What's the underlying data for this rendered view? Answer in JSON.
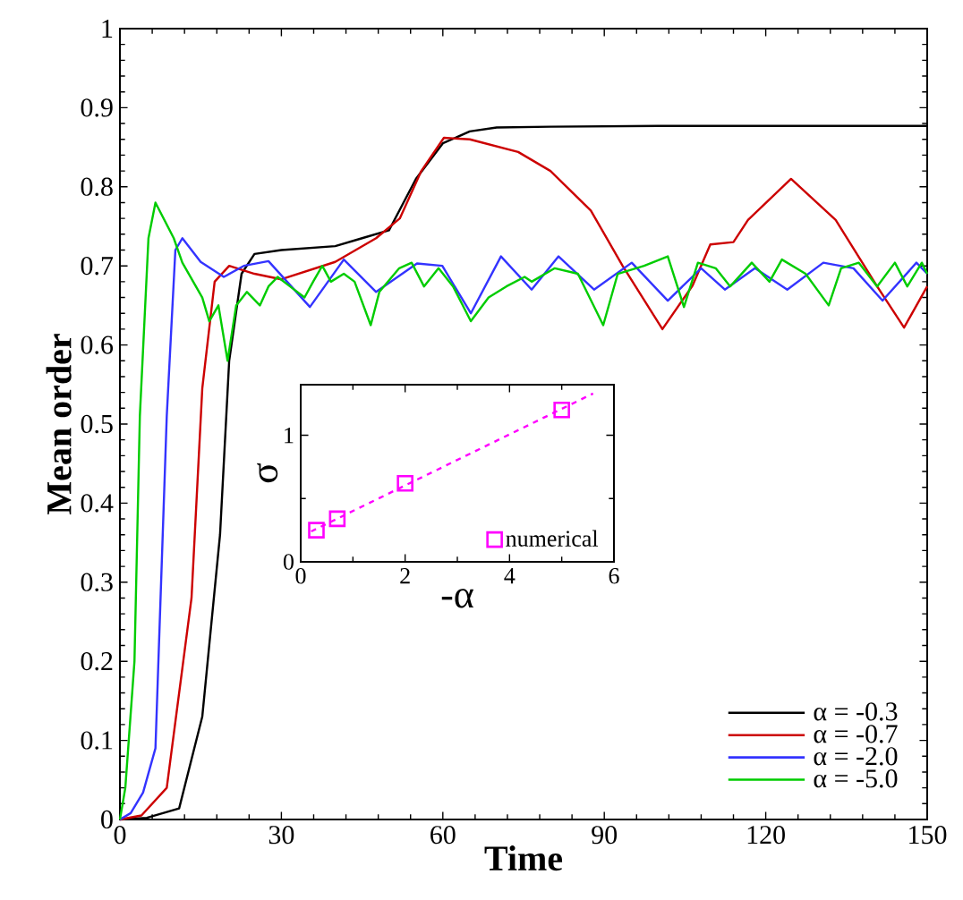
{
  "chart_data": [
    {
      "type": "line",
      "xlabel": "Time",
      "ylabel": "Mean order",
      "xlim": [
        0,
        150
      ],
      "ylim": [
        0,
        1
      ],
      "xticks": [
        0,
        30,
        60,
        90,
        120,
        150
      ],
      "yticks": [
        0,
        0.1,
        0.2,
        0.3,
        0.4,
        0.5,
        0.6,
        0.7,
        0.8,
        0.9,
        1
      ],
      "legend": "bottom right",
      "grid": false,
      "series": [
        {
          "name": "α = -0.3",
          "color": "#000000",
          "x": [
            0,
            5,
            11,
            15.3,
            18.6,
            20.3,
            22.6,
            25,
            30,
            40,
            45,
            50,
            55,
            60,
            65,
            70,
            80,
            100,
            150
          ],
          "values": [
            0,
            0.002,
            0.014,
            0.13,
            0.36,
            0.58,
            0.69,
            0.715,
            0.72,
            0.725,
            0.735,
            0.745,
            0.81,
            0.855,
            0.87,
            0.875,
            0.876,
            0.877,
            0.877
          ]
        },
        {
          "name": "α = -0.7",
          "color": "#cc0000",
          "x": [
            0,
            4,
            8.7,
            13.3,
            15.3,
            17.6,
            20.3,
            25,
            30,
            40,
            47.6,
            52,
            56,
            60.2,
            65,
            74,
            80,
            87.5,
            93.4,
            100.8,
            106.4,
            109.7,
            114,
            116.7,
            124.7,
            133,
            140.7,
            145.7,
            150
          ],
          "values": [
            0,
            0.005,
            0.04,
            0.28,
            0.545,
            0.68,
            0.7,
            0.69,
            0.683,
            0.705,
            0.735,
            0.76,
            0.82,
            0.862,
            0.86,
            0.844,
            0.82,
            0.77,
            0.7,
            0.62,
            0.675,
            0.727,
            0.73,
            0.758,
            0.81,
            0.758,
            0.674,
            0.622,
            0.674
          ]
        },
        {
          "name": "α = -2.0",
          "color": "#3333ff",
          "x": [
            0,
            2,
            4.3,
            6.6,
            8.7,
            10.3,
            11.6,
            15,
            19.3,
            23,
            27.6,
            35.3,
            41.6,
            47.6,
            55.2,
            59.9,
            65.2,
            70.8,
            76.5,
            81.5,
            88.1,
            95.1,
            101.8,
            108,
            112.4,
            118,
            124,
            130.7,
            136.3,
            141.7,
            148,
            150
          ],
          "values": [
            0,
            0.008,
            0.034,
            0.09,
            0.51,
            0.72,
            0.735,
            0.705,
            0.686,
            0.7,
            0.706,
            0.648,
            0.708,
            0.667,
            0.703,
            0.7,
            0.64,
            0.712,
            0.67,
            0.712,
            0.67,
            0.704,
            0.656,
            0.697,
            0.67,
            0.697,
            0.67,
            0.704,
            0.697,
            0.656,
            0.704,
            0.69
          ]
        },
        {
          "name": "α = -5.0",
          "color": "#00cc00",
          "x": [
            0,
            1,
            2.7,
            3.7,
            5.3,
            6.6,
            10,
            11.6,
            15.3,
            16.6,
            18.3,
            20,
            21.6,
            23.6,
            26,
            27.6,
            29.3,
            31.6,
            34.3,
            35.9,
            37.6,
            39.2,
            41.6,
            43.6,
            46.6,
            48.2,
            51.9,
            54.2,
            56.5,
            59.2,
            61.9,
            65.2,
            68.5,
            71.8,
            75.2,
            76.5,
            80.8,
            85.1,
            89.8,
            92.5,
            97.4,
            101.8,
            104.8,
            107.4,
            110.7,
            113.4,
            117.4,
            120.7,
            123,
            127.4,
            131.7,
            134,
            137.3,
            140.7,
            144,
            146.3,
            149,
            150
          ],
          "values": [
            0,
            0.04,
            0.2,
            0.51,
            0.735,
            0.78,
            0.735,
            0.704,
            0.66,
            0.63,
            0.65,
            0.58,
            0.65,
            0.667,
            0.65,
            0.674,
            0.686,
            0.674,
            0.66,
            0.68,
            0.7,
            0.68,
            0.69,
            0.68,
            0.625,
            0.667,
            0.697,
            0.704,
            0.674,
            0.697,
            0.674,
            0.63,
            0.66,
            0.674,
            0.686,
            0.68,
            0.697,
            0.69,
            0.625,
            0.69,
            0.7,
            0.712,
            0.648,
            0.704,
            0.697,
            0.674,
            0.704,
            0.68,
            0.708,
            0.69,
            0.65,
            0.697,
            0.704,
            0.674,
            0.704,
            0.674,
            0.704,
            0.69
          ]
        }
      ]
    },
    {
      "type": "scatter",
      "xlabel": "-α",
      "ylabel": "σ",
      "xlim": [
        0,
        6
      ],
      "ylim": [
        0,
        1.4
      ],
      "xticks": [
        0,
        2,
        4,
        6
      ],
      "yticks": [
        0,
        1
      ],
      "legend": "bottom right",
      "grid": false,
      "series": [
        {
          "name": "numerical",
          "color": "#ff00ff",
          "marker": "square",
          "x": [
            0.3,
            0.7,
            2,
            5
          ],
          "values": [
            0.25,
            0.34,
            0.62,
            1.2
          ]
        },
        {
          "type": "line",
          "line_style": "dashed",
          "color": "#ff00ff",
          "x": [
            0.2,
            5.6
          ],
          "values": [
            0.24,
            1.33
          ]
        }
      ]
    }
  ]
}
